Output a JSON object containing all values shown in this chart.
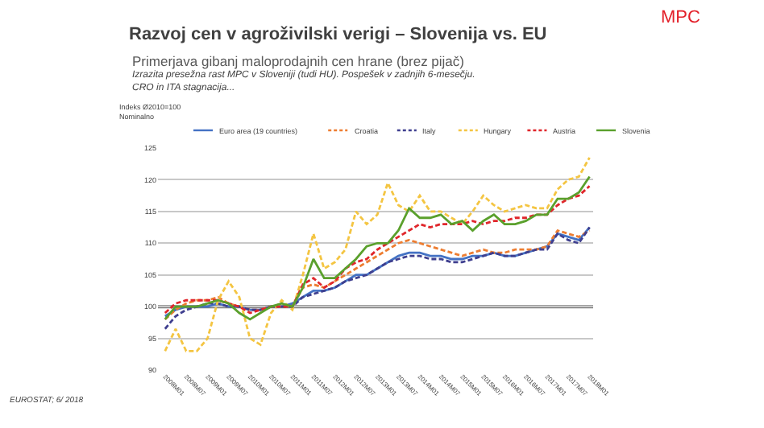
{
  "chart_data": {
    "type": "line",
    "title": "Razvoj cen v agroživilski verigi – Slovenija vs. EU",
    "subtitle": "Primerjava gibanj maloprodajnih cen hrane (brez pijač)",
    "ylabel": "Indeks Ø2010=100\nNominalno",
    "annotations": [
      "Izrazita presežna rast MPC v Sloveniji (tudi HU). Pospešek v zadnjih 6-mesečju.\nCRO in ITA stagnacija...",
      "MPC",
      "EUROSTAT; 6/ 2018"
    ],
    "x": [
      "2008-01",
      "2008-04",
      "2008-07",
      "2008-10",
      "2009-01",
      "2009-04",
      "2009-07",
      "2009-10",
      "2010-01",
      "2010-04",
      "2010-07",
      "2010-10",
      "2011-01",
      "2011-04",
      "2011-07",
      "2011-10",
      "2012-01",
      "2012-04",
      "2012-07",
      "2012-10",
      "2013-01",
      "2013-04",
      "2013-07",
      "2013-10",
      "2014-01",
      "2014-04",
      "2014-07",
      "2014-10",
      "2015-01",
      "2015-04",
      "2015-07",
      "2015-10",
      "2016-01",
      "2016-04",
      "2016-07",
      "2016-10",
      "2017-01",
      "2017-04",
      "2017-07",
      "2017-10",
      "2018-01"
    ],
    "series": [
      {
        "name": "Euro area (19 countries)",
        "color": "#4472c4",
        "line_style": "solid",
        "values": [
          98.5,
          99.5,
          100,
          100,
          100,
          100.5,
          100,
          100,
          99.5,
          99.5,
          100,
          100,
          100.5,
          101.5,
          102.5,
          102.5,
          103,
          104,
          105,
          105,
          106,
          107,
          108,
          108.5,
          108.5,
          108,
          108,
          107.5,
          107.5,
          108,
          108,
          108.5,
          108,
          108,
          108.5,
          109,
          109.5,
          111.5,
          111,
          110.5,
          112.5
        ]
      },
      {
        "name": "Croatia",
        "color": "#ed7d31",
        "line_style": "dashed",
        "values": [
          98,
          99.5,
          100.5,
          101,
          101,
          101.5,
          100.5,
          100,
          99.5,
          99.5,
          100,
          100,
          100,
          103,
          103.5,
          103,
          104,
          105,
          106,
          107,
          108,
          109,
          110,
          110.5,
          110,
          109.5,
          109,
          108.5,
          108,
          108.5,
          109,
          108.5,
          108.5,
          109,
          109,
          109,
          109.5,
          112,
          111.5,
          111,
          112
        ]
      },
      {
        "name": "Italy",
        "color": "#3f3f8f",
        "line_style": "dashed",
        "values": [
          96.5,
          98.5,
          99.5,
          100,
          100.5,
          100.5,
          100,
          100,
          99.5,
          99.5,
          100,
          100,
          100,
          101.5,
          102,
          102.5,
          103,
          104,
          104.5,
          105,
          106,
          107,
          107.5,
          108,
          108,
          107.5,
          107.5,
          107,
          107,
          107.5,
          108,
          108.5,
          108,
          108,
          108.5,
          109,
          109,
          111.5,
          110.5,
          110,
          112.5
        ]
      },
      {
        "name": "Hungary",
        "color": "#f4c542",
        "line_style": "dashed",
        "values": [
          93,
          96.5,
          93,
          93,
          95,
          101,
          104,
          101.5,
          95,
          94,
          99,
          101,
          99.5,
          105,
          111.5,
          106,
          107,
          109,
          115,
          113,
          114.5,
          119.5,
          116,
          115,
          117.5,
          115,
          115,
          114,
          113,
          115,
          117.5,
          116,
          115,
          115.5,
          116,
          115.5,
          115.5,
          118.5,
          120,
          120.5,
          123.5
        ]
      },
      {
        "name": "Austria",
        "color": "#e0262b",
        "line_style": "dashed",
        "values": [
          99,
          100.5,
          101,
          101,
          101,
          101,
          100.5,
          100,
          99,
          99.5,
          100,
          100,
          100,
          103.5,
          104.5,
          103,
          104,
          106,
          107,
          107.5,
          109,
          110,
          111,
          112,
          113,
          112.5,
          113,
          113,
          113,
          113.5,
          113,
          113.5,
          113.5,
          114,
          114,
          114.5,
          114.5,
          116,
          117,
          117.5,
          119
        ]
      },
      {
        "name": "Slovenia",
        "color": "#5aa02c",
        "line_style": "solid",
        "values": [
          98,
          100,
          100,
          100,
          100.5,
          101,
          100.5,
          99,
          98,
          99,
          100,
          100.5,
          100,
          103,
          107.5,
          104.5,
          104.5,
          106,
          107.5,
          109.5,
          110,
          110,
          112,
          115.5,
          114,
          114,
          114.5,
          113,
          113.5,
          112,
          113.5,
          114.5,
          113,
          113,
          113.5,
          114.5,
          114.5,
          117,
          117,
          118,
          120.5
        ]
      }
    ],
    "ylim": [
      90,
      125
    ],
    "yticks": [
      90,
      95,
      100,
      105,
      110,
      115,
      120,
      125
    ],
    "xlim": [
      "2007-11",
      "2018-02"
    ],
    "xticks": [
      {
        "value": "2008-01",
        "label": "2008M01"
      },
      {
        "value": "2008-07",
        "label": "2008M07"
      },
      {
        "value": "2009-01",
        "label": "2009M01"
      },
      {
        "value": "2009-07",
        "label": "2009M07"
      },
      {
        "value": "2010-01",
        "label": "2010M01"
      },
      {
        "value": "2010-07",
        "label": "2010M07"
      },
      {
        "value": "2011-01",
        "label": "2011M01"
      },
      {
        "value": "2011-07",
        "label": "2011M07"
      },
      {
        "value": "2012-01",
        "label": "2012M01"
      },
      {
        "value": "2012-07",
        "label": "2012M07"
      },
      {
        "value": "2013-01",
        "label": "2013M01"
      },
      {
        "value": "2013-07",
        "label": "2013M07"
      },
      {
        "value": "2014-01",
        "label": "2014M01"
      },
      {
        "value": "2014-07",
        "label": "2014M07"
      },
      {
        "value": "2015-01",
        "label": "2015M01"
      },
      {
        "value": "2015-07",
        "label": "2015M07"
      },
      {
        "value": "2016-01",
        "label": "2016M01"
      },
      {
        "value": "2016-07",
        "label": "2016M07"
      },
      {
        "value": "2017-01",
        "label": "2017M01"
      },
      {
        "value": "2017-07",
        "label": "2017M07"
      },
      {
        "value": "2018-01",
        "label": "2018M01"
      }
    ],
    "ref_lines": [
      {
        "axis": "y",
        "value": 100,
        "color": "#7f7f7f"
      }
    ],
    "grid": "y",
    "legend": "top",
    "marker": "none"
  }
}
